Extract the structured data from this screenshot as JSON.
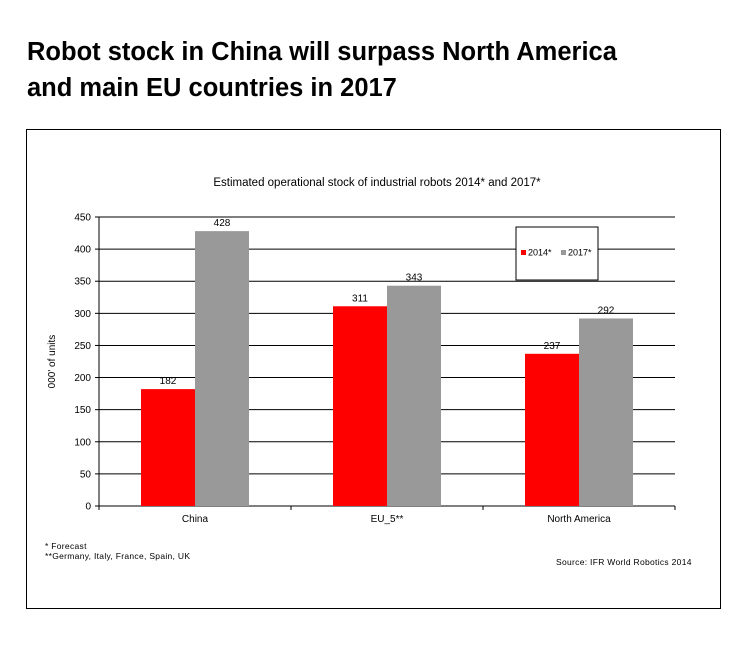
{
  "headline": {
    "line1": "Robot stock in China will surpass North America",
    "line2": "and main EU countries in 2017"
  },
  "footnotes": {
    "forecast": "* Forecast",
    "eu5": "**Germany, Italy, France, Spain, UK",
    "source": "Source: IFR World Robotics 2014"
  },
  "colors": {
    "series_2014": "#ff0000",
    "series_2017": "#999999",
    "gridline": "#000000"
  },
  "chart_data": {
    "type": "bar",
    "title": "Estimated operational stock of industrial robots 2014* and 2017*",
    "xlabel": "",
    "ylabel": "000' of units",
    "categories": [
      "China",
      "EU_5**",
      "North America"
    ],
    "series": [
      {
        "name": "2014*",
        "values": [
          182,
          311,
          237
        ],
        "color": "#ff0000"
      },
      {
        "name": "2017*",
        "values": [
          428,
          343,
          292
        ],
        "color": "#999999"
      }
    ],
    "ylim": [
      0,
      450
    ],
    "yticks": [
      0,
      50,
      100,
      150,
      200,
      250,
      300,
      350,
      400,
      450
    ],
    "grid": true,
    "legend": "top-right"
  }
}
